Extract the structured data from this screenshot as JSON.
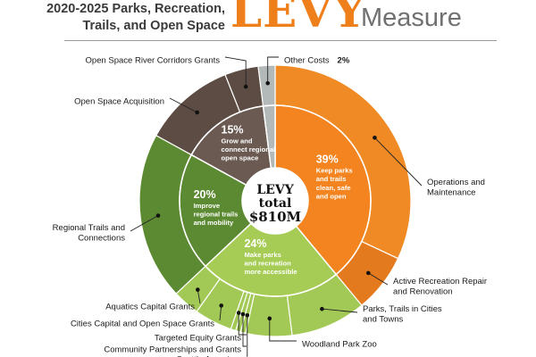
{
  "header": {
    "line1": "2020-2025 Parks, Recreation,",
    "line2": "Trails, and Open Space",
    "levy": "LEVY",
    "measure": "Measure"
  },
  "chart_data": {
    "type": "pie",
    "center_label": [
      "LEVY",
      "total",
      "$810M"
    ],
    "inner": [
      {
        "pct": 39,
        "value": "39%",
        "lines": [
          "Keep parks",
          "and trails",
          "clean, safe",
          "and open"
        ],
        "color": "#f3841f"
      },
      {
        "pct": 24,
        "value": "24%",
        "lines": [
          "Make parks",
          "and recreation",
          "more accessible"
        ],
        "color": "#a6cc55"
      },
      {
        "pct": 20,
        "value": "20%",
        "lines": [
          "Improve",
          "regional trails",
          "and mobility"
        ],
        "color": "#5c8a32"
      },
      {
        "pct": 15,
        "value": "15%",
        "lines": [
          "Grow and",
          "connect regional",
          "open space"
        ],
        "color": "#6a5a52"
      },
      {
        "pct": 2,
        "value": "",
        "lines": [],
        "color": "#b3b8b9"
      }
    ],
    "outer": [
      {
        "name": "Operations and Maintenance",
        "lines": [
          "Operations and",
          "Maintenance"
        ],
        "pct": 32,
        "color": "#f08a25"
      },
      {
        "name": "Active Recreation Repair and Renovation",
        "lines": [
          "Active Recreation Repair",
          "and Renovation"
        ],
        "pct": 7,
        "color": "#e47a1e"
      },
      {
        "name": "Parks, Trails in Cities and Towns",
        "lines": [
          "Parks, Trails in Cities",
          "and Towns"
        ],
        "pct": 9,
        "color": "#a2c955"
      },
      {
        "name": "Woodland Park Zoo",
        "lines": [
          "Woodland Park Zoo"
        ],
        "pct": 5.5,
        "color": "#a2c955"
      },
      {
        "name": "Seattle Aquarium",
        "lines": [
          "Seattle Aquarium"
        ],
        "pct": 0.6,
        "color": "#a2c955"
      },
      {
        "name": "Community Partnerships and Grants",
        "lines": [
          "Community Partnerships and Grants"
        ],
        "pct": 0.6,
        "color": "#a2c955"
      },
      {
        "name": "Targeted Equity Grants",
        "lines": [
          "Targeted Equity Grants"
        ],
        "pct": 0.6,
        "color": "#a2c955"
      },
      {
        "name": "Cities Capital and Open Space Grants",
        "lines": [
          "Cities Capital and Open Space Grants"
        ],
        "pct": 4.5,
        "color": "#a2c955"
      },
      {
        "name": "Aquatics Capital Grants",
        "lines": [
          "Aquatics Capital Grants"
        ],
        "pct": 3.2,
        "color": "#a2c955"
      },
      {
        "name": "Regional Trails and Connections",
        "lines": [
          "Regional Trails and",
          "Connections"
        ],
        "pct": 20,
        "color": "#5c8a32"
      },
      {
        "name": "Open Space Acquisition",
        "lines": [
          "Open Space Acquisition"
        ],
        "pct": 11,
        "color": "#5d4c44"
      },
      {
        "name": "Open Space River Corridors Grants",
        "lines": [
          "Open Space River Corridors Grants"
        ],
        "pct": 4,
        "color": "#5d4c44"
      },
      {
        "name": "Other Costs",
        "lines": [
          "Other Costs"
        ],
        "pct": 2,
        "value": "2%",
        "color": "#b3b8b9"
      }
    ]
  }
}
